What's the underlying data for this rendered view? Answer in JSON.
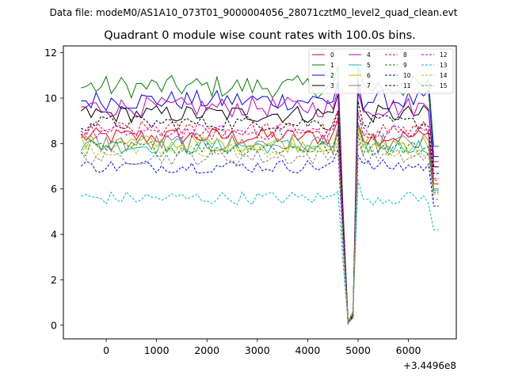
{
  "suptitle": "Data file: modeM0/AS1A10_073T01_9000004056_28071cztM0_level2_quad_clean.evt",
  "chart_data": {
    "type": "line",
    "title": "Quadrant 0 module wise count rates with 100.0s bins.",
    "xlabel": "",
    "ylabel": "",
    "x_offset_label": "+3.4496e8",
    "xlim": [
      -850,
      6950
    ],
    "ylim": [
      -0.6,
      12.3
    ],
    "x_ticks": [
      0,
      1000,
      2000,
      3000,
      4000,
      5000,
      6000
    ],
    "y_ticks": [
      0,
      2,
      4,
      6,
      8,
      10,
      12
    ],
    "x_start": -500,
    "x_step": 100,
    "dip_center": 4805,
    "legend_position": "top-right",
    "series": [
      {
        "name": "0",
        "color": "#ff0000",
        "style": "solid",
        "base": 8.3,
        "amp": 0.4
      },
      {
        "name": "1",
        "color": "#008000",
        "style": "solid",
        "base": 10.5,
        "amp": 0.5
      },
      {
        "name": "2",
        "color": "#0000ff",
        "style": "solid",
        "base": 9.9,
        "amp": 0.45
      },
      {
        "name": "3",
        "color": "#000000",
        "style": "solid",
        "base": 9.3,
        "amp": 0.4
      },
      {
        "name": "4",
        "color": "#c000c0",
        "style": "solid",
        "base": 9.6,
        "amp": 0.45
      },
      {
        "name": "5",
        "color": "#00bfbf",
        "style": "solid",
        "base": 7.9,
        "amp": 0.35
      },
      {
        "name": "6",
        "color": "#bfbf00",
        "style": "solid",
        "base": 8.0,
        "amp": 0.4
      },
      {
        "name": "7",
        "color": "#808080",
        "style": "solid",
        "base": 8.0,
        "amp": 0.45
      },
      {
        "name": "8",
        "color": "#ff0000",
        "style": "dashed",
        "base": 8.6,
        "amp": 0.4
      },
      {
        "name": "9",
        "color": "#008000",
        "style": "dashed",
        "base": 7.8,
        "amp": 0.35
      },
      {
        "name": "10",
        "color": "#0000ff",
        "style": "dashed",
        "base": 7.0,
        "amp": 0.3
      },
      {
        "name": "11",
        "color": "#000000",
        "style": "dashed",
        "base": 8.9,
        "amp": 0.35
      },
      {
        "name": "12",
        "color": "#c000c0",
        "style": "dashed",
        "base": 8.5,
        "amp": 0.35
      },
      {
        "name": "13",
        "color": "#00bfbf",
        "style": "dashed",
        "base": 5.6,
        "amp": 0.3
      },
      {
        "name": "14",
        "color": "#bfbf00",
        "style": "dashed",
        "base": 7.7,
        "amp": 0.35
      },
      {
        "name": "15",
        "color": "#808080",
        "style": "dashed",
        "base": 7.4,
        "amp": 0.35
      }
    ]
  }
}
